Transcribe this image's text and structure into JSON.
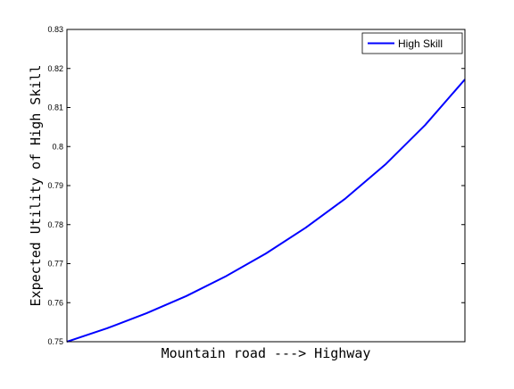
{
  "chart_data": {
    "type": "line",
    "title": "",
    "xlabel": "Mountain road ---> Highway",
    "ylabel": "Expected Utility of High Skill",
    "ylim": [
      0.75,
      0.83
    ],
    "yticks": [
      0.75,
      0.76,
      0.77,
      0.78,
      0.79,
      0.8,
      0.81,
      0.82,
      0.83
    ],
    "ytick_labels": [
      "0.75",
      "0.76",
      "0.77",
      "0.78",
      "0.79",
      "0.8",
      "0.81",
      "0.82",
      "0.83"
    ],
    "xlim": [
      0,
      1
    ],
    "x_tick_labels_visible": false,
    "grid": false,
    "legend": {
      "position": "top-right",
      "entries": [
        {
          "label": "High Skill",
          "color": "#0000ff"
        }
      ]
    },
    "series": [
      {
        "name": "High Skill",
        "color": "#0000ff",
        "x": [
          0,
          0.1,
          0.2,
          0.3,
          0.4,
          0.5,
          0.6,
          0.7,
          0.8,
          0.9,
          1.0
        ],
        "y": [
          0.75,
          0.7534,
          0.7573,
          0.7617,
          0.7668,
          0.7726,
          0.7792,
          0.7867,
          0.7954,
          0.8055,
          0.8172
        ]
      }
    ]
  }
}
